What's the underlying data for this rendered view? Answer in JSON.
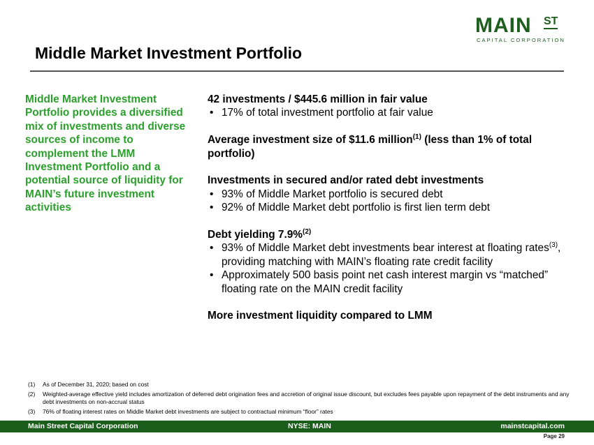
{
  "logo": {
    "main": "MAIN",
    "superscript": "ST",
    "subtitle": "CAPITAL CORPORATION",
    "color": "#1e5e1e"
  },
  "header": {
    "title": "Middle Market Investment Portfolio"
  },
  "sidebar": {
    "text": "Middle Market Investment Portfolio provides a diversified mix of investments and diverse sources of income to complement the LMM Investment Portfolio and a potential source of liquidity for MAIN’s future investment activities",
    "color": "#2ca02c"
  },
  "main": {
    "sections": [
      {
        "heading": "42 investments / $445.6 million in fair value",
        "bullets": [
          "17% of total investment portfolio at fair value"
        ]
      },
      {
        "heading_pre": "Average investment size of $11.6 million",
        "heading_sup": "(1)",
        "heading_post": " (less than 1% of total portfolio)"
      },
      {
        "heading": "Investments in secured and/or rated debt investments",
        "bullets": [
          "93% of Middle Market portfolio is secured debt",
          "92% of Middle Market debt portfolio is first lien term debt"
        ]
      },
      {
        "heading_pre": "Debt yielding 7.9%",
        "heading_sup": "(2)",
        "bullet1_pre": "93% of Middle Market debt investments bear interest at floating rates",
        "bullet1_sup": "(3)",
        "bullet1_post": ", providing matching with MAIN’s floating rate credit facility",
        "bullet2": "Approximately 500 basis point net cash interest margin vs “matched” floating rate on the MAIN credit facility"
      },
      {
        "heading": "More investment liquidity compared to LMM"
      }
    ]
  },
  "footnotes": [
    {
      "num": "(1)",
      "text": "As of December 31, 2020; based on cost"
    },
    {
      "num": "(2)",
      "text": "Weighted-average effective yield includes amortization of deferred debt origination fees and accretion of original issue discount, but excludes fees payable upon repayment of the debt instruments and any debt investments on non-accrual status"
    },
    {
      "num": "(3)",
      "text": "76% of floating interest rates on Middle Market debt investments are subject to contractual minimum “floor” rates"
    }
  ],
  "footer": {
    "left": "Main Street Capital Corporation",
    "center": "NYSE: MAIN",
    "right": "mainstcapital.com",
    "page": "Page  29",
    "bar_color": "#1b5e1b"
  }
}
